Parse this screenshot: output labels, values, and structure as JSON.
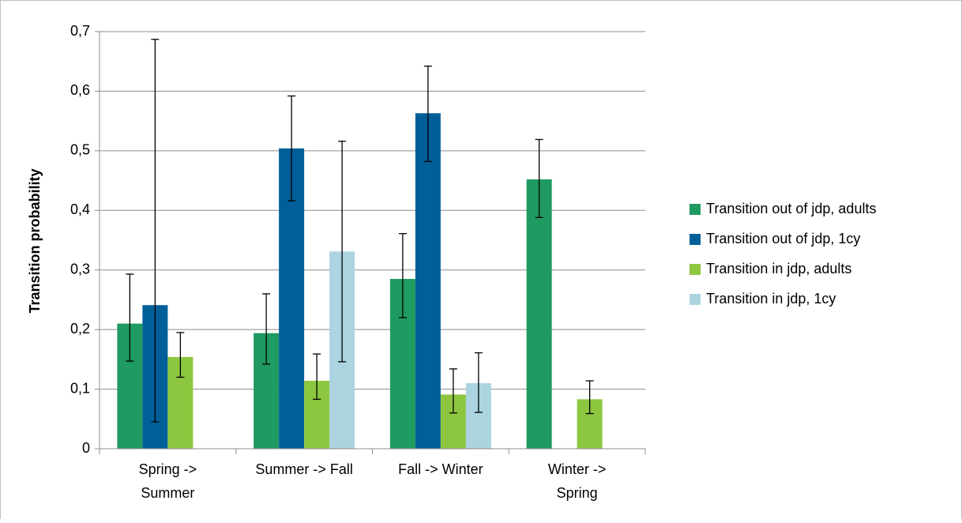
{
  "chart_data": {
    "type": "bar",
    "y_label": "Transition probability",
    "categories": [
      "Spring -> Summer",
      "Summer -> Fall",
      "Fall -> Winter",
      "Winter -> Spring"
    ],
    "series": [
      {
        "name": "Transition out of jdp, adults",
        "color": "#1f9a60",
        "values": [
          0.21,
          0.194,
          0.285,
          0.452
        ],
        "lower": [
          0.147,
          0.142,
          0.22,
          0.388
        ],
        "upper": [
          0.293,
          0.26,
          0.361,
          0.519
        ]
      },
      {
        "name": "Transition out of jdp, 1cy",
        "color": "#005f99",
        "values": [
          0.241,
          0.504,
          0.563,
          null
        ],
        "lower": [
          0.045,
          0.416,
          0.482,
          null
        ],
        "upper": [
          0.687,
          0.592,
          0.642,
          null
        ]
      },
      {
        "name": "Transition in jdp, adults",
        "color": "#8dc63f",
        "values": [
          0.154,
          0.114,
          0.091,
          0.083
        ],
        "lower": [
          0.12,
          0.083,
          0.06,
          0.059
        ],
        "upper": [
          0.195,
          0.159,
          0.134,
          0.114
        ]
      },
      {
        "name": "Transition in jdp, 1cy",
        "color": "#abd3e0",
        "values": [
          null,
          0.331,
          0.11,
          null
        ],
        "lower": [
          null,
          0.146,
          0.061,
          null
        ],
        "upper": [
          null,
          0.516,
          0.161,
          null
        ]
      }
    ],
    "ylim": [
      0,
      0.7
    ],
    "yticks": [
      0,
      {
        "value": 0.1,
        "label": "0,1"
      },
      {
        "value": 0.2,
        "label": "0,2"
      },
      {
        "value": 0.3,
        "label": "0,3"
      },
      {
        "value": 0.4,
        "label": "0,4"
      },
      {
        "value": 0.5,
        "label": "0,5"
      },
      {
        "value": 0.6,
        "label": "0,6"
      },
      {
        "value": 0.7,
        "label": "0,7"
      }
    ],
    "grid": true,
    "legend": "right"
  }
}
